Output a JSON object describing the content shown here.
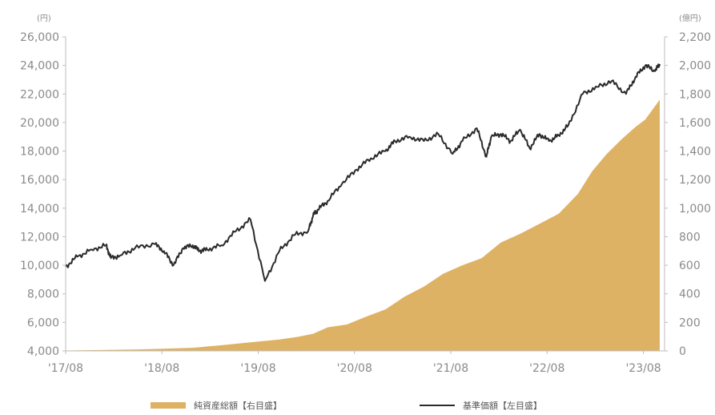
{
  "chart_data": {
    "type": "line",
    "left_axis": {
      "unit": "(円)",
      "ticks": [
        "26,000",
        "24,000",
        "22,000",
        "20,000",
        "18,000",
        "16,000",
        "14,000",
        "12,000",
        "10,000",
        "8,000",
        "6,000",
        "4,000"
      ],
      "ylim": [
        4000,
        26000
      ]
    },
    "right_axis": {
      "unit": "(億円)",
      "ticks": [
        "2,200",
        "2,000",
        "1,800",
        "1,600",
        "1,400",
        "1,200",
        "1,000",
        "800",
        "600",
        "400",
        "200",
        "0"
      ],
      "ylim": [
        0,
        2200
      ]
    },
    "x_ticks": [
      "'17/08",
      "'18/08",
      "'19/08",
      "'20/08",
      "'21/08",
      "'22/08",
      "'23/08"
    ],
    "colors": {
      "nav_line": "#2a2a2a",
      "net_assets_area": "#deb264",
      "axis": "#bdbdbd"
    },
    "series": [
      {
        "name": "基準価額【左目盛】",
        "axis": "left",
        "type": "line",
        "x": [
          2017.58,
          2017.7,
          2017.85,
          2018.0,
          2018.05,
          2018.15,
          2018.3,
          2018.5,
          2018.6,
          2018.7,
          2018.8,
          2018.9,
          2018.97,
          2019.05,
          2019.2,
          2019.35,
          2019.5,
          2019.65,
          2019.8,
          2019.95,
          2020.1,
          2020.15,
          2020.2,
          2020.3,
          2020.45,
          2020.6,
          2020.75,
          2020.9,
          2021.0,
          2021.15,
          2021.3,
          2021.45,
          2021.6,
          2021.7,
          2021.85,
          2021.95,
          2022.0,
          2022.1,
          2022.2,
          2022.3,
          2022.4,
          2022.5,
          2022.6,
          2022.7,
          2022.8,
          2022.95,
          2023.1,
          2023.25,
          2023.4,
          2023.5,
          2023.6,
          2023.7,
          2023.75
        ],
        "values": [
          9900,
          10600,
          11100,
          11400,
          10500,
          10700,
          11200,
          11500,
          11000,
          10000,
          11200,
          11400,
          11000,
          11100,
          11400,
          12400,
          13200,
          8900,
          11000,
          12100,
          12400,
          13500,
          13900,
          14500,
          15700,
          16700,
          17500,
          18000,
          18700,
          19000,
          18700,
          19200,
          17800,
          18700,
          19600,
          17600,
          19000,
          19200,
          18700,
          19500,
          18200,
          19200,
          18700,
          19100,
          19800,
          22000,
          22500,
          22900,
          22000,
          23200,
          24000,
          23600,
          24100
        ]
      },
      {
        "name": "純資産総額【右目盛】",
        "axis": "right",
        "type": "area",
        "x": [
          2017.58,
          2017.8,
          2018.0,
          2018.3,
          2018.6,
          2018.9,
          2019.2,
          2019.5,
          2019.8,
          2020.0,
          2020.15,
          2020.3,
          2020.5,
          2020.7,
          2020.9,
          2021.1,
          2021.3,
          2021.5,
          2021.7,
          2021.9,
          2022.1,
          2022.3,
          2022.5,
          2022.7,
          2022.9,
          2023.05,
          2023.2,
          2023.35,
          2023.5,
          2023.6,
          2023.75
        ],
        "values": [
          3,
          5,
          7,
          10,
          15,
          22,
          40,
          60,
          80,
          100,
          120,
          165,
          185,
          240,
          290,
          380,
          450,
          540,
          600,
          650,
          760,
          820,
          890,
          960,
          1100,
          1260,
          1380,
          1480,
          1570,
          1620,
          1760
        ]
      }
    ],
    "legend_placement": "bottom",
    "grid": false
  }
}
